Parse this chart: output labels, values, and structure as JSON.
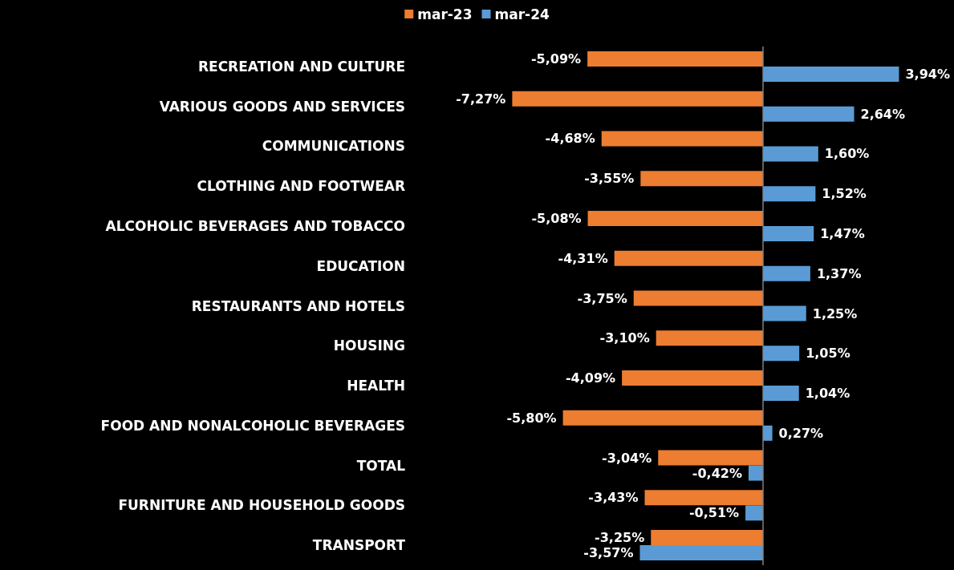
{
  "chart_data": {
    "type": "bar",
    "orientation": "horizontal",
    "legend": "top",
    "grid": false,
    "categories": [
      "RECREATION AND CULTURE",
      "VARIOUS GOODS AND SERVICES",
      "COMMUNICATIONS",
      "CLOTHING AND FOOTWEAR",
      "ALCOHOLIC BEVERAGES AND TOBACCO",
      "EDUCATION",
      "RESTAURANTS AND HOTELS",
      "HOUSING",
      "HEALTH",
      "FOOD AND NONALCOHOLIC BEVERAGES",
      "TOTAL",
      "FURNITURE AND HOUSEHOLD GOODS",
      "TRANSPORT"
    ],
    "series": [
      {
        "name": "mar-23",
        "color": "#ed7d31",
        "values": [
          -5.09,
          -7.27,
          -4.68,
          -3.55,
          -5.08,
          -4.31,
          -3.75,
          -3.1,
          -4.09,
          -5.8,
          -3.04,
          -3.43,
          -3.25
        ],
        "value_labels": [
          "-5,09%",
          "-7,27%",
          "-4,68%",
          "-3,55%",
          "-5,08%",
          "-4,31%",
          "-3,75%",
          "-3,10%",
          "-4,09%",
          "-5,80%",
          "-3,04%",
          "-3,43%",
          "-3,25%"
        ]
      },
      {
        "name": "mar-24",
        "color": "#5b9bd5",
        "values": [
          3.94,
          2.64,
          1.6,
          1.52,
          1.47,
          1.37,
          1.25,
          1.05,
          1.04,
          0.27,
          -0.42,
          -0.51,
          -3.57
        ],
        "value_labels": [
          "3,94%",
          "2,64%",
          "1,60%",
          "1,52%",
          "1,47%",
          "1,37%",
          "1,25%",
          "1,05%",
          "1,04%",
          "0,27%",
          "-0,42%",
          "-0,51%",
          "-3,57%"
        ]
      }
    ]
  }
}
